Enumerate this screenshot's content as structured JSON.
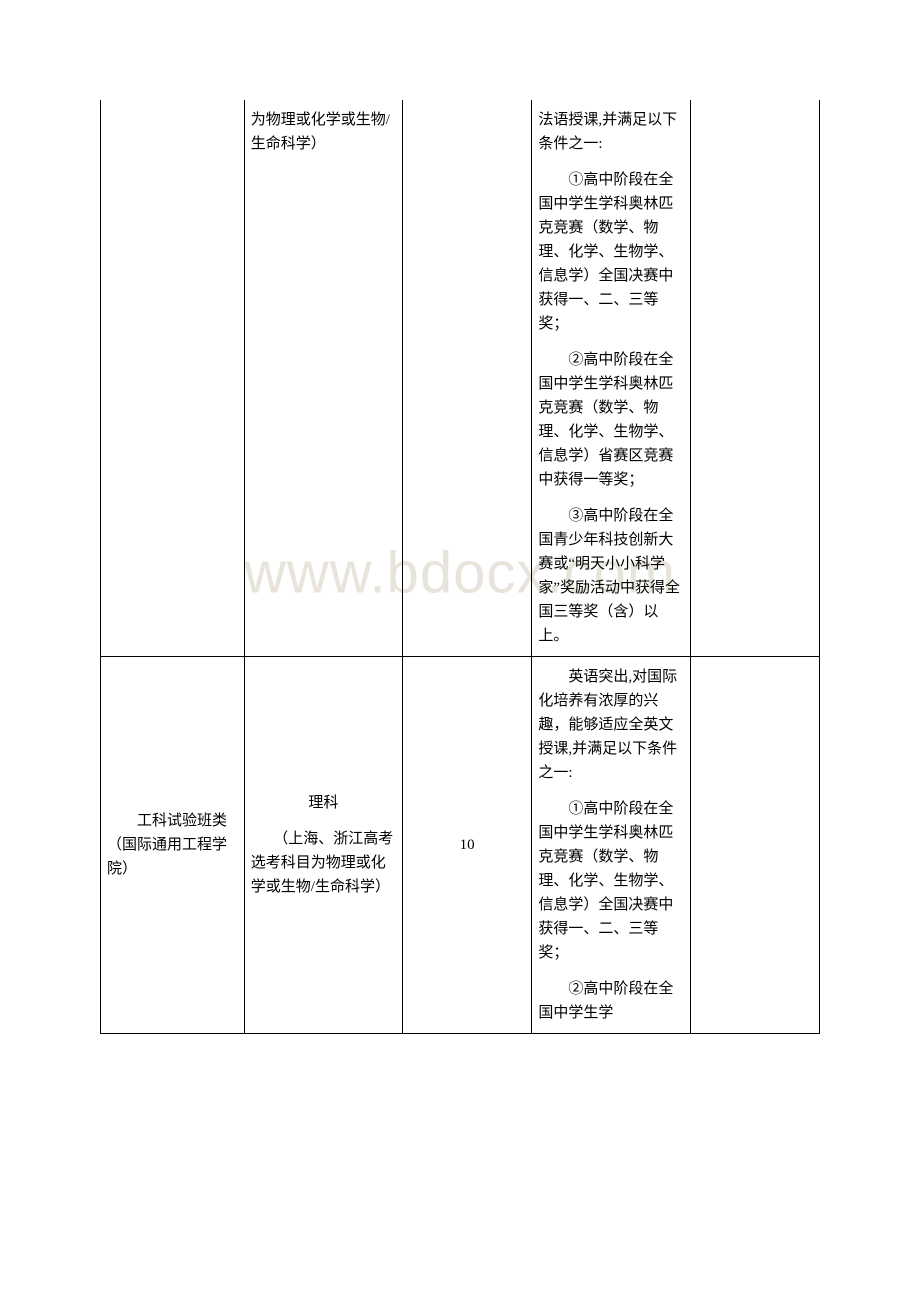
{
  "watermark": "www.bdocx.com",
  "table": {
    "row1": {
      "col2_partial": "为物理或化学或生物/生命科学）",
      "col4": {
        "p0": "法语授课,并满足以下条件之一:",
        "p1": "　　①高中阶段在全国中学生学科奥林匹克竞赛（数学、物理、化学、生物学、信息学）全国决赛中获得一、二、三等奖；",
        "p2": "　　②高中阶段在全国中学生学科奥林匹克竞赛（数学、物理、化学、生物学、信息学）省赛区竞赛中获得一等奖；",
        "p3": "　　③高中阶段在全国青少年科技创新大赛或“明天小小科学家”奖励活动中获得全国三等奖（含）以上。"
      }
    },
    "row2": {
      "col1": "　　工科试验班类（国际通用工程学院）",
      "col2_line1": "理科",
      "col2_line2": "　　（上海、浙江高考选考科目为物理或化学或生物/生命科学）",
      "col3": "10",
      "col4": {
        "p1": "　　英语突出,对国际化培养有浓厚的兴趣，能够适应全英文授课,并满足以下条件之一:",
        "p2": "　　①高中阶段在全国中学生学科奥林匹克竞赛（数学、物理、化学、生物学、信息学）全国决赛中获得一、二、三等奖；",
        "p3": "　　②高中阶段在全国中学生学"
      }
    }
  }
}
